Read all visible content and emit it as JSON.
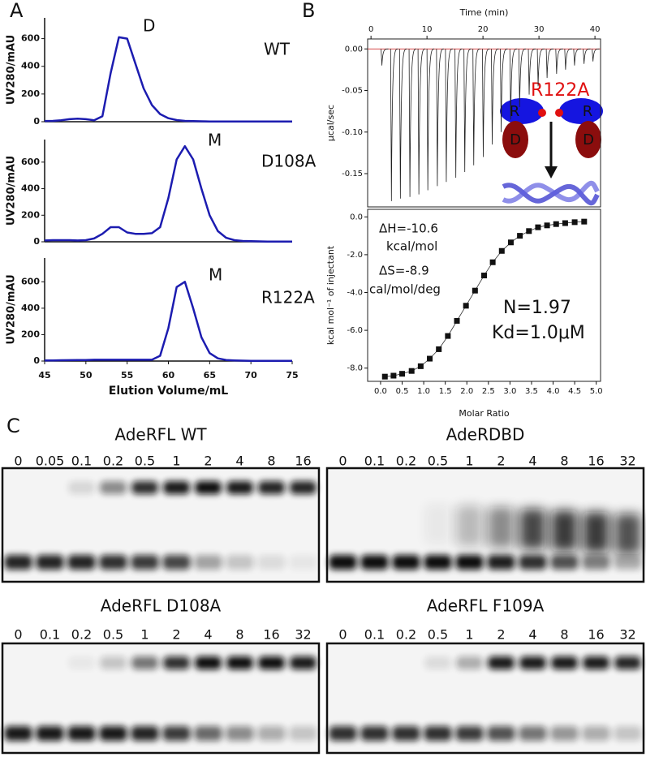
{
  "panel_labels": [
    "A",
    "B",
    "C"
  ],
  "chart_data": [
    {
      "type": "line",
      "color": "#1c1cb0",
      "ylabel": "UV280/mAU",
      "annotations": [
        "D",
        "WT"
      ],
      "x": [
        45,
        46,
        47,
        48,
        49,
        50,
        51,
        52,
        53,
        54,
        55,
        56,
        57,
        58,
        59,
        60,
        61,
        62,
        63,
        64,
        65,
        66,
        67,
        68,
        69,
        70,
        71,
        72,
        73,
        74,
        75
      ],
      "values": [
        5,
        6,
        10,
        18,
        22,
        18,
        10,
        40,
        350,
        610,
        600,
        420,
        240,
        120,
        55,
        25,
        12,
        6,
        4,
        3,
        2,
        2,
        1,
        1,
        1,
        1,
        1,
        1,
        1,
        1,
        1
      ],
      "xlim": [
        45,
        75
      ],
      "ylim": [
        0,
        750
      ],
      "yticks": [
        0,
        200,
        400,
        600
      ]
    },
    {
      "type": "line",
      "color": "#1c1cb0",
      "ylabel": "UV280/mAU",
      "annotations": [
        "M",
        "D108A"
      ],
      "x": [
        45,
        46,
        47,
        48,
        49,
        50,
        51,
        52,
        53,
        54,
        55,
        56,
        57,
        58,
        59,
        60,
        61,
        62,
        63,
        64,
        65,
        66,
        67,
        68,
        69,
        70,
        71,
        72,
        73,
        74,
        75
      ],
      "values": [
        10,
        12,
        12,
        12,
        10,
        12,
        25,
        60,
        110,
        110,
        70,
        60,
        60,
        65,
        110,
        330,
        620,
        720,
        620,
        400,
        200,
        80,
        30,
        12,
        6,
        4,
        3,
        2,
        2,
        2,
        2
      ],
      "xlim": [
        45,
        75
      ],
      "ylim": [
        0,
        770
      ],
      "yticks": [
        0,
        200,
        400,
        600
      ]
    },
    {
      "type": "line",
      "color": "#1c1cb0",
      "ylabel": "UV280/mAU",
      "annotations": [
        "M",
        "R122A"
      ],
      "xlabel": "Elution Volume/mL",
      "x": [
        45,
        46,
        47,
        48,
        49,
        50,
        51,
        52,
        53,
        54,
        55,
        56,
        57,
        58,
        59,
        60,
        61,
        62,
        63,
        64,
        65,
        66,
        67,
        68,
        69,
        70,
        71,
        72,
        73,
        74,
        75
      ],
      "values": [
        5,
        5,
        6,
        7,
        8,
        8,
        10,
        10,
        10,
        10,
        10,
        10,
        10,
        10,
        40,
        250,
        560,
        600,
        400,
        180,
        60,
        20,
        8,
        5,
        3,
        2,
        2,
        2,
        2,
        2,
        2
      ],
      "xlim": [
        45,
        75
      ],
      "ylim": [
        0,
        780
      ],
      "yticks": [
        0,
        200,
        400,
        600
      ],
      "xticks": [
        45,
        50,
        55,
        60,
        65,
        70,
        75
      ]
    },
    {
      "type": "impulse",
      "color": "#222222",
      "xlabel": "Time (min)",
      "ylabel": "μcal/sec",
      "x": [
        1.8,
        3.5,
        5.1,
        6.8,
        8.4,
        10.0,
        11.7,
        13.3,
        15.0,
        16.6,
        18.2,
        19.9,
        21.5,
        23.1,
        24.8,
        26.4,
        28.1,
        29.7,
        31.3,
        33.0,
        34.6,
        36.2,
        37.9,
        39.5
      ],
      "values": [
        -0.02,
        -0.183,
        -0.18,
        -0.178,
        -0.175,
        -0.17,
        -0.165,
        -0.16,
        -0.155,
        -0.148,
        -0.14,
        -0.13,
        -0.115,
        -0.1,
        -0.085,
        -0.07,
        -0.055,
        -0.045,
        -0.035,
        -0.03,
        -0.025,
        -0.02,
        -0.018,
        -0.015
      ],
      "xlim": [
        -0.6,
        41
      ],
      "ylim": [
        -0.19,
        0.012
      ],
      "xticks": [
        0,
        10,
        20,
        30,
        40
      ],
      "yticks": [
        {
          "value": 0,
          "label": "0.00"
        },
        {
          "value": -0.05,
          "label": "-0.05"
        },
        {
          "value": -0.1,
          "label": "-0.10"
        },
        {
          "value": -0.15,
          "label": "-0.15"
        }
      ]
    },
    {
      "type": "scatter",
      "color": "#111111",
      "xlabel": "Molar Ratio",
      "ylabel": "kcal mol⁻¹ of injectant",
      "annotations": [
        "ΔH=-10.6",
        "kcal/mol",
        "ΔS=-8.9",
        "cal/mol/deg",
        "N=1.97",
        "Kd=1.0μM"
      ],
      "x": [
        0.1,
        0.3,
        0.5,
        0.72,
        0.93,
        1.14,
        1.35,
        1.56,
        1.77,
        1.98,
        2.19,
        2.4,
        2.6,
        2.81,
        3.02,
        3.23,
        3.44,
        3.65,
        3.86,
        4.07,
        4.28,
        4.5,
        4.72
      ],
      "values": [
        -8.45,
        -8.4,
        -8.3,
        -8.15,
        -7.9,
        -7.5,
        -7.0,
        -6.3,
        -5.5,
        -4.7,
        -3.9,
        -3.1,
        -2.4,
        -1.8,
        -1.35,
        -1.0,
        -0.75,
        -0.55,
        -0.45,
        -0.38,
        -0.33,
        -0.28,
        -0.25
      ],
      "xlim": [
        -0.3,
        5.1
      ],
      "ylim": [
        -8.7,
        0.4
      ],
      "xticks": [
        {
          "value": 0,
          "label": "0.0"
        },
        0.5,
        {
          "value": 1,
          "label": "1.0"
        },
        1.5,
        {
          "value": 2,
          "label": "2.0"
        },
        2.5,
        {
          "value": 3,
          "label": "3.0"
        },
        3.5,
        {
          "value": 4,
          "label": "4.0"
        },
        4.5,
        {
          "value": 5,
          "label": "5.0"
        }
      ],
      "yticks": [
        {
          "value": 0,
          "label": "0.0"
        },
        {
          "value": -2,
          "label": "-2.0"
        },
        {
          "value": -4,
          "label": "-4.0"
        },
        {
          "value": -6,
          "label": "-6.0"
        },
        {
          "value": -8,
          "label": "-8.0"
        }
      ]
    }
  ],
  "schematic": {
    "title": "R122A",
    "domains": [
      "R",
      "R",
      "D",
      "D"
    ]
  },
  "gels": [
    {
      "title": "AdeRFL WT",
      "lanes": [
        "0",
        "0.05",
        "0.1",
        "0.2",
        "0.5",
        "1",
        "2",
        "4",
        "8",
        "16"
      ]
    },
    {
      "title": "AdeRDBD",
      "lanes": [
        "0",
        "0.1",
        "0.2",
        "0.5",
        "1",
        "2",
        "4",
        "8",
        "16",
        "32"
      ]
    },
    {
      "title": "AdeRFL D108A",
      "lanes": [
        "0",
        "0.1",
        "0.2",
        "0.5",
        "1",
        "2",
        "4",
        "8",
        "16",
        "32"
      ]
    },
    {
      "title": "AdeRFL F109A",
      "lanes": [
        "0",
        "0.1",
        "0.2",
        "0.5",
        "1",
        "2",
        "4",
        "8",
        "16",
        "32"
      ]
    }
  ]
}
